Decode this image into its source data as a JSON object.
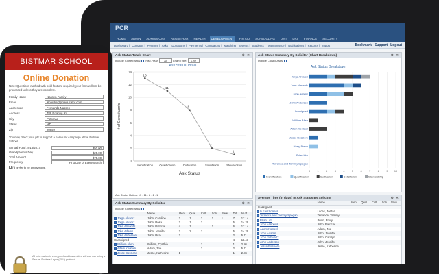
{
  "app": {
    "logo": "PCR",
    "menu": [
      "HOME",
      "ADMIN",
      "ADMISSIONS",
      "REGISTRAR",
      "HEALTH",
      "DEVELOPMENT",
      "FIN AID",
      "SCHEDULING",
      "DMT",
      "DAT",
      "FINANCE",
      "SECURITY"
    ],
    "submenu": [
      "Dashboard",
      "Contacts",
      "Persons",
      "Asks",
      "Donations",
      "Payments",
      "Campaigns",
      "Matching",
      "Events",
      "Students",
      "Maintenance",
      "Notifications",
      "Reports",
      "Import"
    ],
    "links": {
      "bookmark": "Bookmark",
      "support": "Support",
      "logout": "Logout"
    }
  },
  "panel_totals": {
    "title": "Ask Status Totals Chart",
    "include_closed": "Include Closed Asks:",
    "fisc_year": "Fisc. Year:",
    "fisc_value": "All",
    "chart_type": "Chart Type:",
    "chart_type_value": "Line",
    "ratios": "Ask Status Ratios: 13 : 11 : 8 : 2 : 1"
  },
  "panel_breakdown": {
    "title": "Ask Status Summary By Solicitor (Chart Breakdown)",
    "include_closed": "Include Closed Asks:"
  },
  "panel_summary": {
    "title": "Ask Status Summary By Solicitor",
    "include_closed": "Include Closed Asks:",
    "columns": [
      "",
      "Name",
      "Iden.",
      "Qual.",
      "Culti.",
      "Soli.",
      "Stew.",
      "Tot.",
      "% of"
    ],
    "rows": [
      [
        "Jorge Alvarez",
        "John, Caroline",
        "2",
        "1",
        "2",
        "1",
        "1",
        "7",
        "17.14"
      ],
      [
        "Jorge Alvarez",
        "John, Rosa",
        "2",
        "1",
        "2",
        "",
        "",
        "5",
        "14.29"
      ],
      [
        "John Almonds",
        "John, Patricia",
        "4",
        "1",
        "",
        "1",
        "",
        "6",
        "17.14"
      ],
      [
        "John Adams",
        "John, Jennifer",
        "2",
        "2",
        "1",
        "",
        "",
        "5",
        "14.29"
      ],
      [
        "John Anderson",
        "John, Rita",
        "2",
        "",
        "",
        "",
        "",
        "2",
        "5.71"
      ],
      [
        "Unassigned",
        "",
        "",
        "",
        "",
        "",
        "",
        "4",
        "11.43"
      ],
      [
        "William Allen",
        "William, Cynthia",
        "",
        "",
        "1",
        "",
        "",
        "1",
        "2.86"
      ],
      [
        "Adam Kooteeli",
        "Adam, Zoe",
        "",
        "",
        "2",
        "",
        "",
        "2",
        "5.71"
      ],
      [
        "Jesse Bossiere",
        "Jesse, Katherine",
        "1",
        "",
        "",
        "",
        "",
        "1",
        "2.86"
      ]
    ]
  },
  "panel_avgtime": {
    "title": "Average Time (In days) In Ask Status By Solicitor",
    "columns": [
      "",
      "Name",
      "Iden",
      "Qual",
      "Culti",
      "Soli",
      "Stew"
    ],
    "rows": [
      [
        "Unassigned",
        "",
        "",
        "",
        "",
        "",
        ""
      ],
      [
        "Lucas Scalers",
        "Lucas, Jordan",
        "",
        "",
        "",
        "",
        ""
      ],
      [
        "Terrance and Tammy Spogan",
        "Terrance, Tammy",
        "",
        "",
        "",
        "",
        ""
      ],
      [
        "Brian Lim",
        "Brian, Emily",
        "",
        "",
        "",
        "",
        ""
      ],
      [
        "John Almonds",
        "John, Patricia",
        "",
        "",
        "",
        "",
        ""
      ],
      [
        "Adam Kooteeli",
        "Adam, Zoe",
        "",
        "",
        "",
        "",
        ""
      ],
      [
        "John Adams",
        "John, Jennifer",
        "",
        "",
        "",
        "",
        ""
      ],
      [
        "John Schwartz",
        "John, Carolyn",
        "",
        "",
        "",
        "",
        ""
      ],
      [
        "John Anderson",
        "John, Jennifer",
        "",
        "",
        "",
        "",
        ""
      ],
      [
        "Jesse Bossiere",
        "Jesse, Katherine",
        "",
        "",
        "",
        "",
        ""
      ]
    ]
  },
  "phone": {
    "school": "BISTMAR SCHOOL",
    "title": "Online Donation",
    "note": "Note: Questions marked with bold font are required; your form will not be processed unless they are complete.",
    "fields": [
      {
        "label": "Family Name",
        "value": "Nassen Family"
      },
      {
        "label": "Email",
        "value": "alnerdin@pcreducator.com"
      },
      {
        "label": "Addressee",
        "value": "Fernando Nassen"
      },
      {
        "label": "Address",
        "value": "789 Roaring Rd"
      },
      {
        "label": "City",
        "value": "Potomac"
      },
      {
        "label": "State*",
        "value": "MD"
      },
      {
        "label": "Zip",
        "value": "20859"
      }
    ],
    "direct": "You may direct your gift to support a particular campaign at the Bistmar School.",
    "amounts": [
      {
        "label": "Annual Fund 2016/2017",
        "value": "$50.00"
      },
      {
        "label": "Grandparents Day",
        "value": "$25.00"
      },
      {
        "label": "Total Amount",
        "value": "$75.00"
      },
      {
        "label": "Frequency",
        "value": "First Day of Every Month"
      }
    ],
    "anon": "I'd prefer to be anonymous.",
    "secure": "All information is encrypted and transmitted without risk using a Secure Sockets Layer (SSL) protocol."
  },
  "chart_data": [
    {
      "type": "line",
      "title": "Ask Status Totals",
      "xlabel": "Ask Status",
      "ylabel": "# of Constituents",
      "categories": [
        "Identification",
        "Qualification",
        "Cultivation",
        "Solicitation",
        "Stewardship"
      ],
      "values": [
        13,
        11,
        8,
        2,
        1
      ],
      "ylim": [
        0,
        14
      ],
      "grid": true,
      "color": "#a9a9a9"
    },
    {
      "type": "bar",
      "title": "Ask Status Breakdown",
      "orientation": "horizontal",
      "stacked": true,
      "categories": [
        "Jorge Alvarez",
        "John Almonds",
        "John Adams",
        "John Anderson",
        "Unassigned",
        "William Allen",
        "Adam Kooteeli",
        "Jesse Bossiere",
        "Harry Stene",
        "Brian Lim",
        "Terrance and Tammy Spogan"
      ],
      "series": [
        {
          "name": "Identification",
          "color": "#2e6fb1",
          "values": [
            2,
            4,
            2,
            2,
            2,
            0,
            0,
            1,
            0,
            0,
            0
          ]
        },
        {
          "name": "Qualification",
          "color": "#8fc0e6",
          "values": [
            1,
            1,
            2,
            0,
            1,
            0,
            0,
            0,
            1,
            0,
            0
          ]
        },
        {
          "name": "Cultivation",
          "color": "#3d3d3d",
          "values": [
            2,
            0,
            1,
            0,
            1,
            1,
            2,
            0,
            0,
            0,
            0
          ]
        },
        {
          "name": "Solicitation",
          "color": "#1d4e89",
          "values": [
            1,
            1,
            0,
            0,
            0,
            0,
            0,
            0,
            0,
            0,
            0
          ]
        },
        {
          "name": "Stewardship",
          "color": "#9ea3a8",
          "values": [
            1,
            0,
            0,
            0,
            0,
            0,
            0,
            0,
            0,
            0,
            0
          ]
        }
      ],
      "xlim": [
        0,
        10
      ],
      "xticks": [
        "0",
        "1",
        "2",
        "3",
        "4",
        "5",
        "6",
        "7",
        "8",
        "9",
        "10"
      ]
    }
  ]
}
